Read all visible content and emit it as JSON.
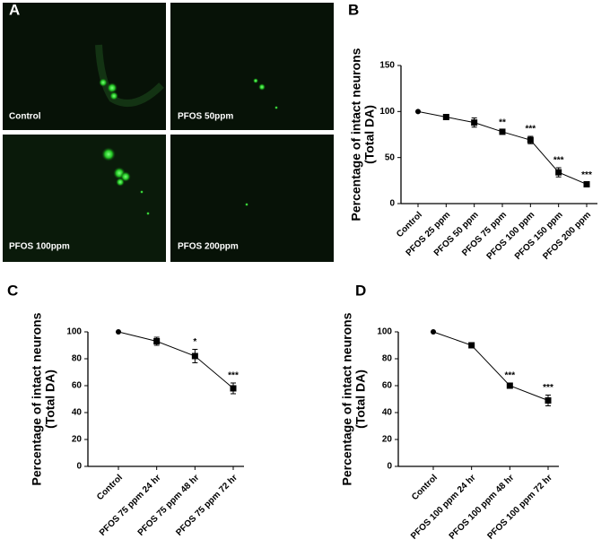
{
  "panel_a": {
    "label": "A",
    "images": [
      "Control",
      "PFOS 50ppm",
      "PFOS 100ppm",
      "PFOS 200ppm"
    ]
  },
  "chart_data": [
    {
      "type": "line",
      "panel_label": "B",
      "ylabel": [
        "Percentage of intact neurons",
        "(Total DA)"
      ],
      "categories": [
        "Control",
        "PFOS 25 ppm",
        "PFOS 50 ppm",
        "PFOS 75 ppm",
        "PFOS 100 ppm",
        "PFOS 150 ppm",
        "PFOS 200 ppm"
      ],
      "values": [
        100,
        94,
        88,
        78,
        69,
        34,
        21
      ],
      "errors": [
        0,
        1.5,
        5,
        2,
        4,
        5,
        2
      ],
      "significance": [
        null,
        null,
        null,
        "**",
        "***",
        "***",
        "***"
      ],
      "color": "#000000",
      "ylim": [
        0,
        150
      ],
      "yticks": [
        0,
        50,
        100,
        150
      ]
    },
    {
      "type": "line",
      "panel_label": "C",
      "ylabel": [
        "Percentage of intact neurons",
        "(Total DA)"
      ],
      "categories": [
        "Control",
        "PFOS 75 ppm 24 hr",
        "PFOS 75 ppm 48 hr",
        "PFOS 75 ppm 72 hr"
      ],
      "values": [
        100,
        93,
        82,
        58
      ],
      "errors": [
        0,
        3,
        5,
        4
      ],
      "significance": [
        null,
        null,
        "*",
        "***"
      ],
      "color": "#000000",
      "ylim": [
        0,
        100
      ],
      "yticks": [
        0,
        20,
        40,
        60,
        80,
        100
      ]
    },
    {
      "type": "line",
      "panel_label": "D",
      "ylabel": [
        "Percentage of intact neurons",
        "(Total DA)"
      ],
      "categories": [
        "Control",
        "PFOS 100 ppm 24 hr",
        "PFOS 100 ppm 48 hr",
        "PFOS 100 ppm 72 hr"
      ],
      "values": [
        100,
        90,
        60,
        49
      ],
      "errors": [
        0,
        1,
        2,
        4
      ],
      "significance": [
        null,
        null,
        "***",
        "***"
      ],
      "color": "#000000",
      "ylim": [
        0,
        100
      ],
      "yticks": [
        0,
        20,
        40,
        60,
        80,
        100
      ]
    }
  ]
}
